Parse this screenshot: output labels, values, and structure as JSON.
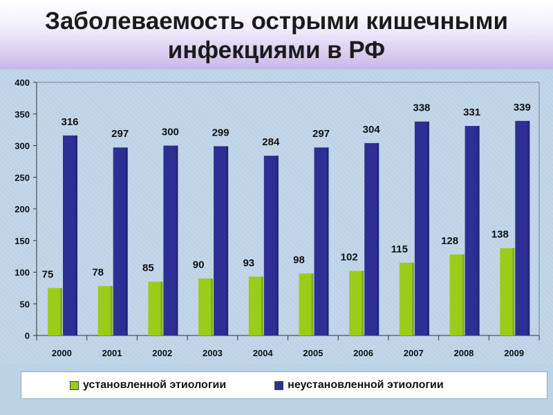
{
  "title": {
    "line1": "Заболеваемость острыми кишечными",
    "line2": "инфекциями в РФ"
  },
  "colors": {
    "established": "#9acd1a",
    "unestablished": "#2e2f94"
  },
  "chart_data": {
    "type": "bar",
    "title": "Заболеваемость острыми кишечными инфекциями в РФ",
    "categories": [
      "2000",
      "2001",
      "2002",
      "2003",
      "2004",
      "2005",
      "2006",
      "2007",
      "2008",
      "2009"
    ],
    "series": [
      {
        "name": "установленной этиологии",
        "values": [
          75,
          78,
          85,
          90,
          93,
          98,
          102,
          115,
          128,
          138
        ]
      },
      {
        "name": "неустановленной этиологии",
        "values": [
          316,
          297,
          300,
          299,
          284,
          297,
          304,
          338,
          331,
          339
        ]
      }
    ],
    "ylim": [
      0,
      400
    ],
    "yticks": [
      0,
      50,
      100,
      150,
      200,
      250,
      300,
      350,
      400
    ],
    "xlabel": "",
    "ylabel": "",
    "legend": "bottom",
    "grid": false
  },
  "legend": {
    "established_label": "установленной этиологии",
    "unestablished_label": "неустановленной этиологии"
  }
}
